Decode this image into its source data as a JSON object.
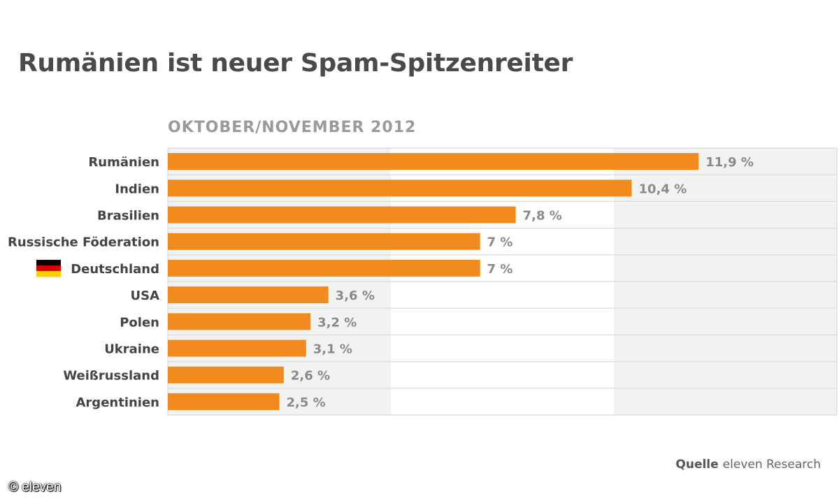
{
  "chart_data": {
    "type": "bar",
    "orientation": "horizontal",
    "title": "Rumänien ist neuer Spam-Spitzenreiter",
    "subtitle": "OKTOBER/NOVEMBER 2012",
    "categories": [
      "Rumänien",
      "Indien",
      "Brasilien",
      "Russische Föderation",
      "Deutschland",
      "USA",
      "Polen",
      "Ukraine",
      "Weißrussland",
      "Argentinien"
    ],
    "values": [
      11.9,
      10.4,
      7.8,
      7,
      7,
      3.6,
      3.2,
      3.1,
      2.6,
      2.5
    ],
    "value_labels": [
      "11,9 %",
      "10,4 %",
      "7,8 %",
      "7 %",
      "7 %",
      "3,6 %",
      "3,2 %",
      "3,1 %",
      "2,6 %",
      "2,5 %"
    ],
    "xlim": [
      0,
      15
    ],
    "grid": true,
    "highlight_flag": {
      "category": "Deutschland",
      "icon": "germany-flag-icon",
      "colors": [
        "#000000",
        "#dd0000",
        "#ffce00"
      ]
    },
    "bar_color": "#f28a1e",
    "band_color": "#f1f3f3"
  },
  "source": {
    "label": "Quelle",
    "text": "eleven Research"
  },
  "copyright": "© eleven"
}
